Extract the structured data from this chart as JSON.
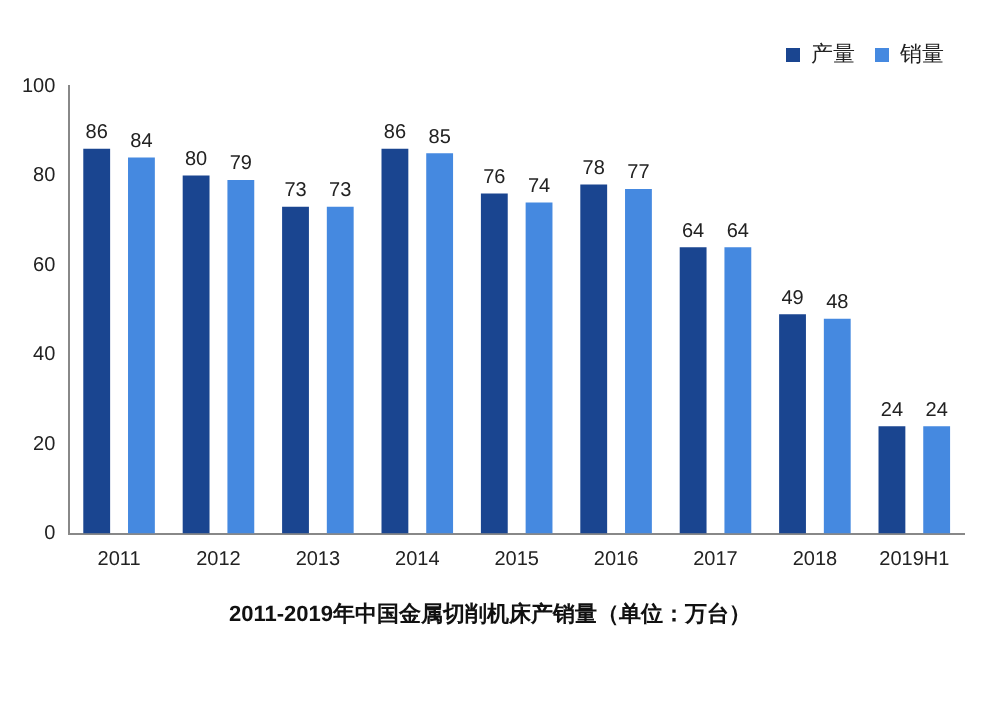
{
  "chart_data": {
    "type": "bar",
    "title": "2011-2019年中国金属切削机床产销量（单位：万台）",
    "categories": [
      "2011",
      "2012",
      "2013",
      "2014",
      "2015",
      "2016",
      "2017",
      "2018",
      "2019H1"
    ],
    "series": [
      {
        "name": "产量",
        "color": "#1a4590",
        "values": [
          86,
          80,
          73,
          86,
          76,
          78,
          64,
          49,
          24
        ]
      },
      {
        "name": "销量",
        "color": "#4589e0",
        "values": [
          84,
          79,
          73,
          85,
          74,
          77,
          64,
          48,
          24
        ]
      }
    ],
    "ylim": [
      0,
      100
    ],
    "yticks": [
      0,
      20,
      40,
      60,
      80,
      100
    ],
    "grid": false,
    "legend": "top right",
    "data_labels": true
  }
}
